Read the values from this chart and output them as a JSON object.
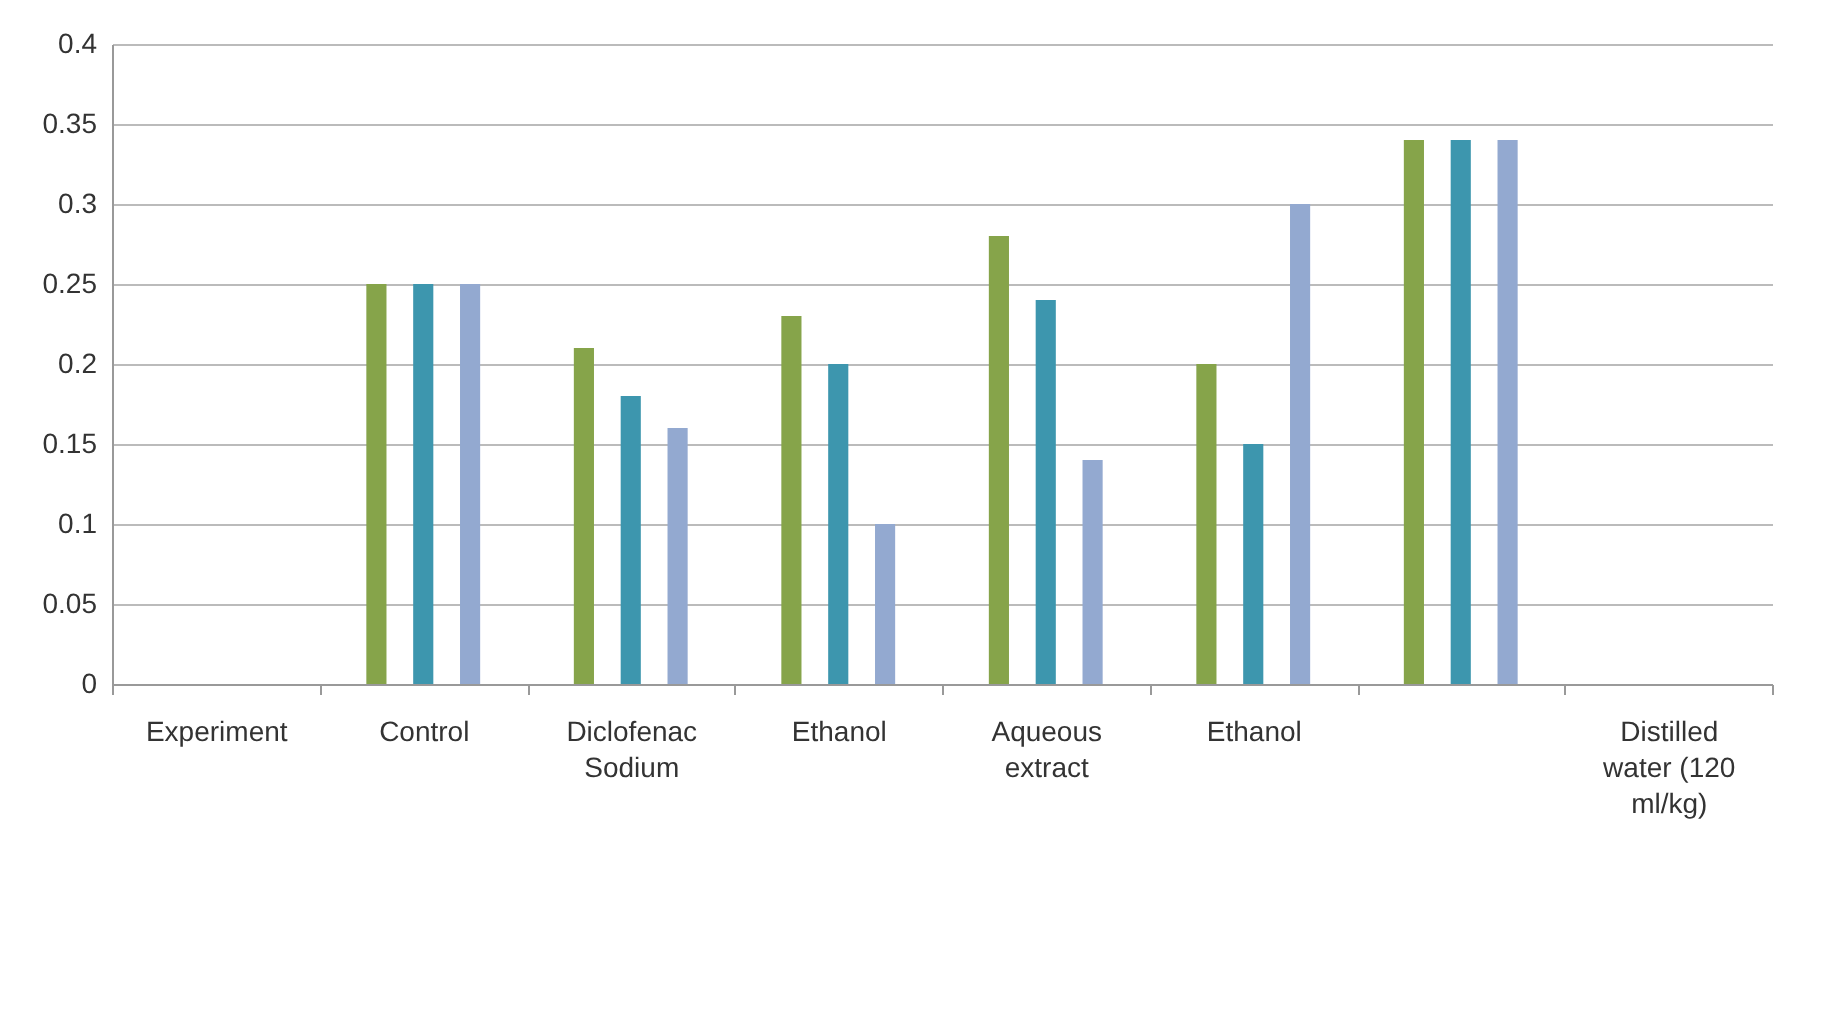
{
  "chart_data": {
    "type": "bar",
    "categories": [
      "Experiment",
      "Control",
      "Diclofenac Sodium",
      "Ethanol",
      "Aqueous extract",
      "Ethanol",
      null,
      "Distilled water (120 ml/kg)"
    ],
    "series": [
      {
        "color": "#86a44a",
        "values": [
          null,
          0.25,
          0.21,
          0.23,
          0.28,
          0.2,
          0.34,
          null
        ]
      },
      {
        "color": "#3d96ae",
        "values": [
          null,
          0.25,
          0.18,
          0.2,
          0.24,
          0.15,
          0.34,
          null
        ]
      },
      {
        "color": "#93a9d0",
        "values": [
          null,
          0.25,
          0.16,
          0.1,
          0.14,
          0.3,
          0.34,
          null
        ]
      }
    ],
    "ylim": [
      0,
      0.4
    ],
    "yticks": [
      0,
      0.05,
      0.1,
      0.15,
      0.2,
      0.25,
      0.3,
      0.35,
      0.4
    ],
    "grid": "y"
  }
}
